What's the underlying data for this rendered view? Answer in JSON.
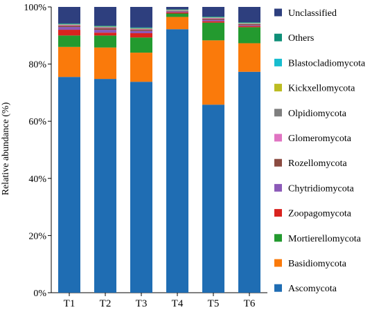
{
  "chart_data": {
    "type": "bar",
    "stacked": true,
    "ylabel": "Relative abundance (%)",
    "ylim": [
      0,
      100
    ],
    "y_ticks": [
      "0%",
      "20%",
      "40%",
      "60%",
      "80%",
      "100%"
    ],
    "y_tick_values": [
      0,
      20,
      40,
      60,
      80,
      100
    ],
    "categories": [
      "T1",
      "T2",
      "T3",
      "T4",
      "T5",
      "T6"
    ],
    "legend_position": "right",
    "grid": false,
    "series": [
      {
        "name": "Ascomycota",
        "color": "#1f6db3",
        "values": [
          75.5,
          74.8,
          73.8,
          92.2,
          65.8,
          77.3
        ]
      },
      {
        "name": "Basidiomycota",
        "color": "#fa7a0b",
        "values": [
          10.5,
          11.0,
          10.2,
          4.3,
          22.5,
          10.0
        ]
      },
      {
        "name": "Mortierellomycota",
        "color": "#239a2f",
        "values": [
          4.0,
          4.2,
          5.3,
          1.2,
          6.2,
          5.6
        ]
      },
      {
        "name": "Zoopagomycota",
        "color": "#d9231f",
        "values": [
          2.0,
          1.0,
          1.5,
          0.4,
          0.5,
          0.4
        ]
      },
      {
        "name": "Chytridiomycota",
        "color": "#8c5ab8",
        "values": [
          1.0,
          1.0,
          0.8,
          0.3,
          0.5,
          0.3
        ]
      },
      {
        "name": "Rozellomycota",
        "color": "#8b4b41",
        "values": [
          0.5,
          0.6,
          0.5,
          0.2,
          0.4,
          0.4
        ]
      },
      {
        "name": "Glomeromycota",
        "color": "#e074c2",
        "values": [
          0.2,
          0.2,
          0.2,
          0.1,
          0.2,
          0.1
        ]
      },
      {
        "name": "Olpidiomycota",
        "color": "#7f7f7f",
        "values": [
          0.1,
          0.2,
          0.1,
          0.1,
          0.1,
          0.1
        ]
      },
      {
        "name": "Kickxellomycota",
        "color": "#bcbc22",
        "values": [
          0.1,
          0.1,
          0.1,
          0.1,
          0.1,
          0.1
        ]
      },
      {
        "name": "Blastocladiomycota",
        "color": "#18bdcf",
        "values": [
          0.1,
          0.1,
          0.1,
          0.1,
          0.1,
          0.1
        ]
      },
      {
        "name": "Others",
        "color": "#0f8f78",
        "values": [
          0.2,
          0.2,
          0.2,
          0.1,
          0.2,
          0.2
        ]
      },
      {
        "name": "Unclassified",
        "color": "#2e3f7e",
        "values": [
          5.8,
          6.6,
          7.2,
          0.9,
          3.4,
          5.4
        ]
      }
    ]
  }
}
